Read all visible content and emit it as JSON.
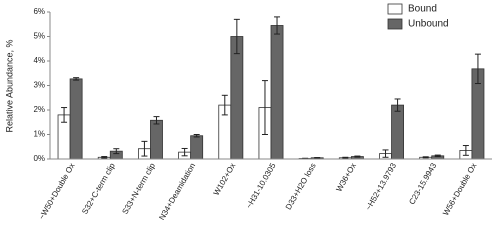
{
  "chart_data": {
    "type": "bar",
    "ylabel": "Relative Abundance, %",
    "categories": [
      "~W50+Double Ox",
      "S32+C-term clip",
      "S33+N-term clip",
      "N34+Deamidation",
      "W102+Ox",
      "~H31-10.0305",
      "D33+H2O loss",
      "W36+Ox",
      "~H52+13.9793",
      "C23-15.9943",
      "W56+Double Ox"
    ],
    "series": [
      {
        "name": "Bound",
        "color": "#ffffff",
        "values": [
          1.8,
          0.07,
          0.42,
          0.28,
          2.2,
          2.1,
          0.02,
          0.05,
          0.22,
          0.07,
          0.35
        ],
        "errors": [
          0.3,
          0.03,
          0.3,
          0.15,
          0.4,
          1.1,
          0.01,
          0.02,
          0.15,
          0.02,
          0.2
        ]
      },
      {
        "name": "Unbound",
        "color": "#666666",
        "values": [
          3.27,
          0.32,
          1.58,
          0.95,
          5.0,
          5.45,
          0.05,
          0.1,
          2.2,
          0.13,
          3.68
        ],
        "errors": [
          0.05,
          0.1,
          0.15,
          0.05,
          0.7,
          0.35,
          0.01,
          0.02,
          0.25,
          0.03,
          0.6
        ]
      }
    ],
    "ylim": [
      0,
      6
    ],
    "yticks": [
      {
        "value": 0,
        "label": "0%"
      },
      {
        "value": 1,
        "label": "1%"
      },
      {
        "value": 2,
        "label": "2%"
      },
      {
        "value": 3,
        "label": "3%"
      },
      {
        "value": 4,
        "label": "4%"
      },
      {
        "value": 5,
        "label": "5%"
      },
      {
        "value": 6,
        "label": "6%"
      }
    ],
    "legend": "top-right"
  }
}
